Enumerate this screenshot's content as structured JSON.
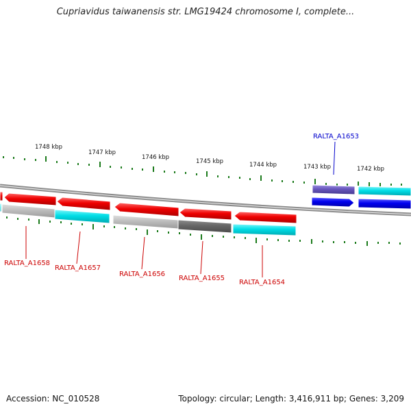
{
  "title": "Cupriavidus taiwanensis str. LMG19424 chromosome I, complete...",
  "accession": "Accession: NC_010528",
  "summary": "Topology: circular; Length: 3,416,911 bp; Genes: 3,209",
  "colors": {
    "tick": "#1a7a1a",
    "backbone": "#8a8a8a",
    "label_red": "#cc0000",
    "label_blue": "#0000cc",
    "red": "#ee0000",
    "blue": "#0000ee",
    "cyan": "#00e0e8",
    "purple": "#6655bb",
    "gray_light": "#bdbdbd",
    "gray_dark": "#666666"
  },
  "scale_labels": [
    "1748 kbp",
    "1747 kbp",
    "1746 kbp",
    "1745 kbp",
    "1744 kbp",
    "1743 kbp",
    "1742 kbp"
  ],
  "gene_labels": [
    "RALTA_A1658",
    "RALTA_A1657",
    "RALTA_A1656",
    "RALTA_A1655",
    "RALTA_A1654",
    "RALTA_A1653"
  ]
}
